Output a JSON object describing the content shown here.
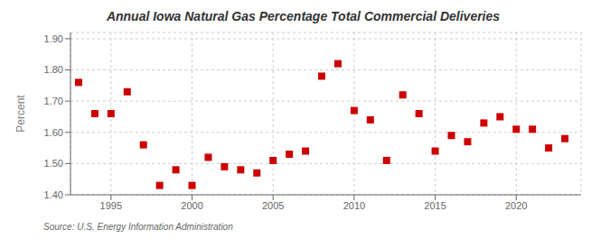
{
  "chart_data": {
    "type": "scatter",
    "title": "Annual Iowa Natural Gas Percentage Total Commercial Deliveries",
    "ylabel": "Percent",
    "annotation": "Source: U.S. Energy Information Administration",
    "x": [
      1993,
      1994,
      1995,
      1996,
      1997,
      1998,
      1999,
      2000,
      2001,
      2002,
      2003,
      2004,
      2005,
      2006,
      2007,
      2008,
      2009,
      2010,
      2011,
      2012,
      2013,
      2014,
      2015,
      2016,
      2017,
      2018,
      2019,
      2020,
      2021,
      2022,
      2023
    ],
    "values": [
      1.76,
      1.66,
      1.66,
      1.73,
      1.56,
      1.43,
      1.48,
      1.43,
      1.52,
      1.49,
      1.48,
      1.47,
      1.51,
      1.53,
      1.54,
      1.78,
      1.82,
      1.67,
      1.64,
      1.51,
      1.72,
      1.66,
      1.54,
      1.59,
      1.57,
      1.63,
      1.65,
      1.61,
      1.61,
      1.55,
      1.58
    ],
    "color": "#cc0000",
    "marker": "square",
    "xlim": [
      1992.5,
      2024
    ],
    "ylim": [
      1.4,
      1.92
    ],
    "xticks": [
      1995,
      2000,
      2005,
      2010,
      2015,
      2020
    ],
    "yticks": [
      {
        "value": 1.4,
        "label": "1.40"
      },
      {
        "value": 1.5,
        "label": "1.50"
      },
      {
        "value": 1.6,
        "label": "1.60"
      },
      {
        "value": 1.7,
        "label": "1.70"
      },
      {
        "value": 1.8,
        "label": "1.80"
      },
      {
        "value": 1.9,
        "label": "1.90"
      }
    ],
    "grid": true
  }
}
